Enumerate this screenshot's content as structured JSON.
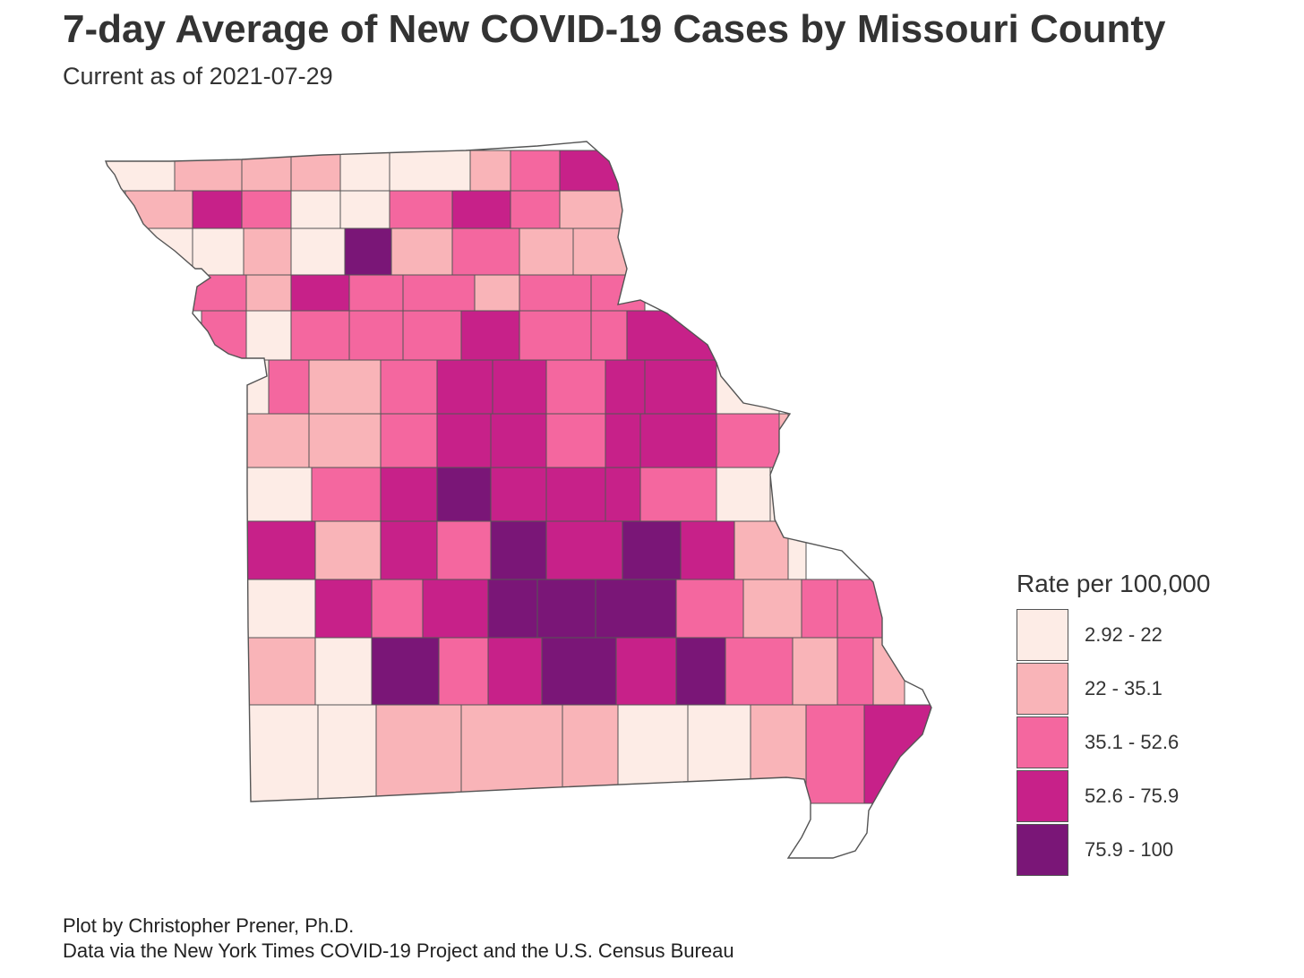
{
  "title": "7-day Average of New COVID-19 Cases by Missouri County",
  "subtitle": "Current as of 2021-07-29",
  "caption": {
    "line1": "Plot by Christopher Prener, Ph.D.",
    "line2": "Data via the New York Times COVID-19 Project and the U.S. Census Bureau"
  },
  "legend": {
    "title": "Rate per 100,000",
    "classes": [
      {
        "label": "2.92 - 22",
        "color": "#FDECE6"
      },
      {
        "label": "22 - 35.1",
        "color": "#F9B4B8"
      },
      {
        "label": "35.1 - 52.6",
        "color": "#F4679F"
      },
      {
        "label": "52.6 - 75.9",
        "color": "#C72189"
      },
      {
        "label": "75.9 - 100",
        "color": "#7A1677"
      }
    ]
  },
  "map_data": {
    "region": "Missouri",
    "county_classes_approx": [
      0,
      1,
      1,
      1,
      0,
      0,
      1,
      2,
      3,
      1,
      3,
      2,
      0,
      0,
      2,
      3,
      2,
      1,
      0,
      0,
      1,
      0,
      4,
      1,
      2,
      1,
      1,
      2,
      1,
      3,
      2,
      2,
      1,
      2,
      2,
      2,
      0,
      2,
      2,
      2,
      3,
      2,
      2,
      3,
      0,
      2,
      1,
      2,
      3,
      3,
      2,
      3,
      3,
      0,
      1,
      1,
      2,
      3,
      3,
      2,
      3,
      3,
      2,
      1,
      0,
      2,
      3,
      4,
      3,
      3,
      3,
      2,
      0,
      0,
      3,
      1,
      3,
      2,
      4,
      3,
      4,
      3,
      1,
      0,
      0,
      3,
      2,
      3,
      4,
      4,
      4,
      2,
      1,
      2,
      2,
      1,
      0,
      4,
      2,
      3,
      4,
      3,
      4,
      2,
      1,
      2,
      1,
      0
    ]
  }
}
